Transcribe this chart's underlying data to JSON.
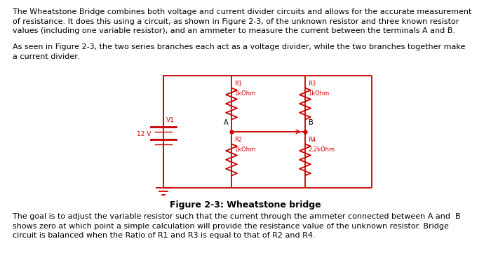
{
  "para1_line1": "The Wheatstone Bridge combines both voltage and current divider circuits and allows for the accurate measurement",
  "para1_line2": "of resistance. It does this using a circuit, as shown in Figure 2-3, of the unknown resistor and three known resistor",
  "para1_line3": "values (including one variable resistor), and an ammeter to measure the current between the terminals A and B.",
  "para2_line1": "As seen in Figure 2-3, the two series branches each act as a voltage divider, while the two branches together make",
  "para2_line2": "a current divider.",
  "caption": "Figure 2-3: Wheatstone bridge",
  "para3_line1": "The goal is to adjust the variable resistor such that the current through the ammeter connected between A and  B",
  "para3_line2": "shows zero at which point a simple calculation will provide the resistance value of the unknown resistor. Bridge",
  "para3_line3": "circuit is balanced when the Ratio of R1 and R3 is equal to that of R2 and R4.",
  "circuit_color": "#cc0000",
  "text_color": "#000000",
  "bg_color": "#ffffff",
  "font_size": 8.0,
  "caption_font_size": 9.0
}
